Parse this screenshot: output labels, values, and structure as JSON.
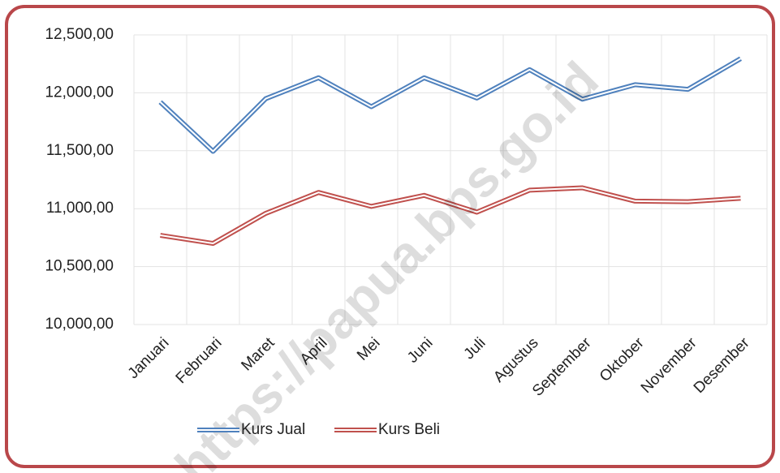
{
  "chart_data": {
    "type": "line",
    "categories": [
      "Januari",
      "Februari",
      "Maret",
      "April",
      "Mei",
      "Juni",
      "Juli",
      "Agustus",
      "September",
      "Oktober",
      "November",
      "Desember"
    ],
    "series": [
      {
        "name": "Kurs Jual",
        "color": "#4f81bd",
        "values": [
          11920,
          11495,
          11950,
          12130,
          11880,
          12130,
          11955,
          12200,
          11945,
          12070,
          12030,
          12295
        ]
      },
      {
        "name": "Kurs Beli",
        "color": "#c0504d",
        "values": [
          10770,
          10700,
          10960,
          11140,
          11020,
          11115,
          10970,
          11160,
          11180,
          11065,
          11060,
          11090
        ]
      }
    ],
    "ylim": [
      10000,
      12500
    ],
    "yticks": [
      {
        "value": 10000,
        "label": "10,000,00"
      },
      {
        "value": 10500,
        "label": "10,500,00"
      },
      {
        "value": 11000,
        "label": "11,000,00"
      },
      {
        "value": 11500,
        "label": "11,500,00"
      },
      {
        "value": 12000,
        "label": "12,000,00"
      },
      {
        "value": 12500,
        "label": "12,500,00"
      }
    ],
    "grid": true,
    "watermark": "https://papua.bps.go.id"
  }
}
